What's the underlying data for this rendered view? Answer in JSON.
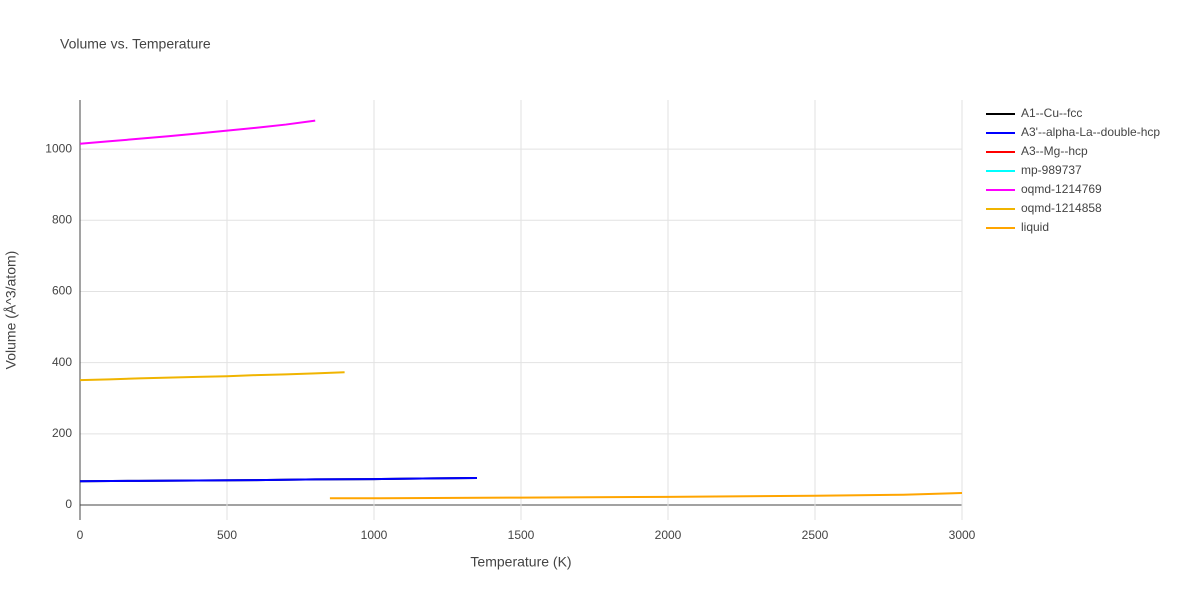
{
  "chart_data": {
    "type": "line",
    "title": "Volume vs. Temperature",
    "x_label": "Temperature (K)",
    "y_label": "Volume (Å^3/atom)",
    "xlim": [
      0,
      3000
    ],
    "xticks": [
      0,
      500,
      1000,
      1500,
      2000,
      2500,
      3000
    ],
    "ylim": [
      -42,
      1138
    ],
    "yticks": [
      0,
      200,
      400,
      600,
      800,
      1000
    ],
    "grid": true,
    "legend": "right",
    "series": [
      {
        "name": "A1--Cu--fcc",
        "color": "#000000",
        "x": [
          0,
          200,
          400,
          600,
          800,
          1000,
          1200,
          1350
        ],
        "values": [
          67,
          68,
          69,
          70,
          72,
          73,
          75,
          76
        ]
      },
      {
        "name": "A3'--alpha-La--double-hcp",
        "color": "#0000ff",
        "x": [
          0,
          200,
          400,
          600,
          800,
          1000,
          1200,
          1350
        ],
        "values": [
          67,
          68,
          69,
          70,
          72,
          73,
          75,
          76
        ]
      },
      {
        "name": "A3--Mg--hcp",
        "color": "#ff0000",
        "x": [],
        "values": []
      },
      {
        "name": "mp-989737",
        "color": "#00ffff",
        "x": [],
        "values": []
      },
      {
        "name": "oqmd-1214769",
        "color": "#ff00ff",
        "x": [
          0,
          100,
          200,
          300,
          400,
          500,
          600,
          700,
          800
        ],
        "values": [
          1015,
          1022,
          1029,
          1036,
          1044,
          1052,
          1060,
          1069,
          1080
        ]
      },
      {
        "name": "oqmd-1214858",
        "color": "#f0b400",
        "x": [
          0,
          100,
          200,
          300,
          400,
          500,
          600,
          700,
          800,
          900
        ],
        "values": [
          351,
          353,
          356,
          358,
          360,
          362,
          365,
          367,
          370,
          373
        ]
      },
      {
        "name": "liquid",
        "color": "#ffa500",
        "x": [
          850,
          1000,
          1500,
          2000,
          2500,
          2800,
          3000
        ],
        "values": [
          19,
          19,
          21,
          23,
          26,
          29,
          34
        ]
      }
    ]
  }
}
